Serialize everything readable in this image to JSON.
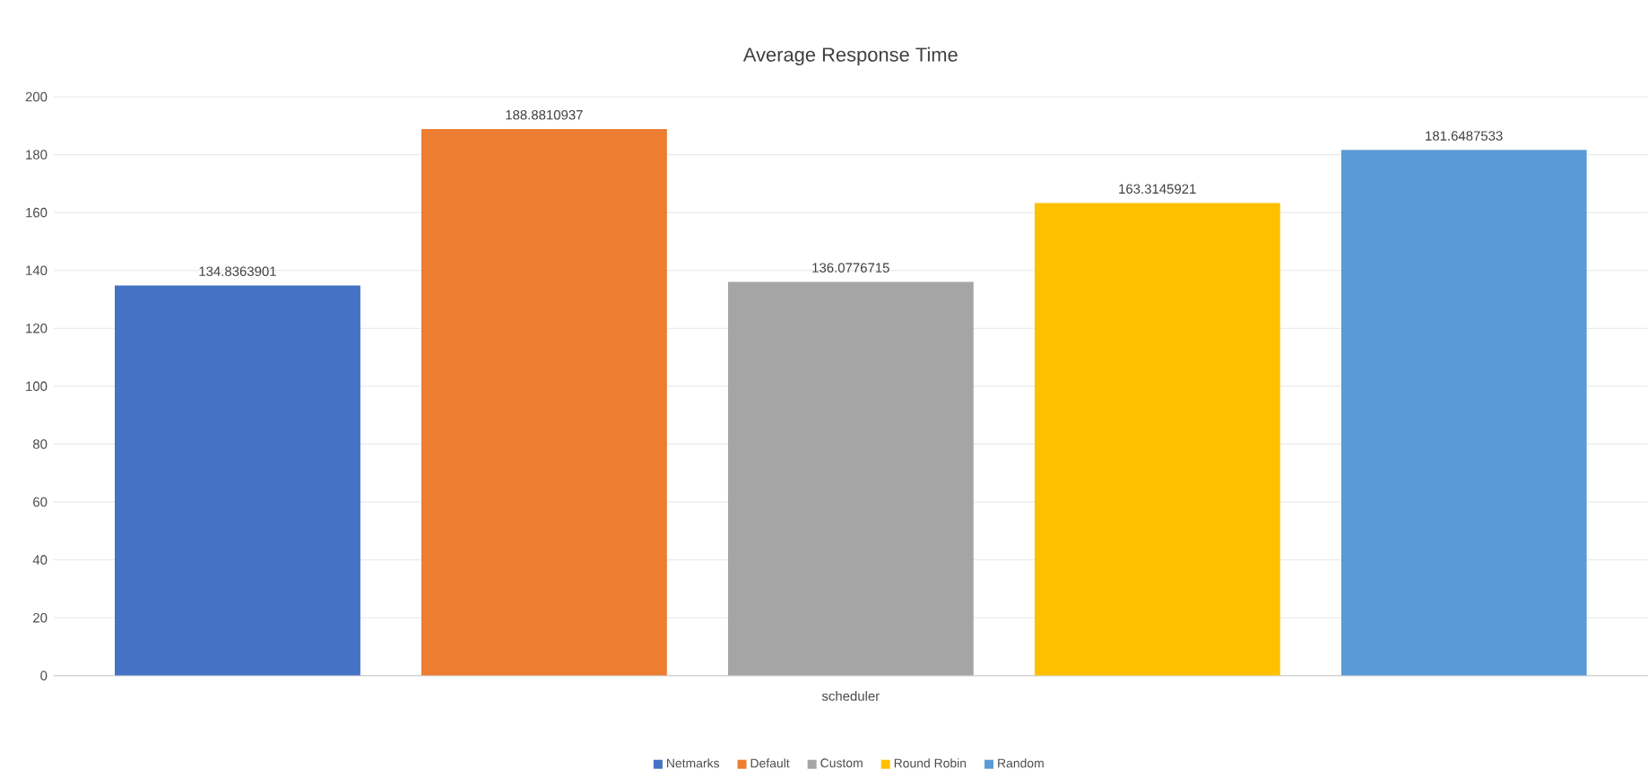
{
  "chart_data": {
    "type": "bar",
    "title": "Average Response Time",
    "categories": [
      "scheduler"
    ],
    "series": [
      {
        "name": "Netmarks",
        "color": "#4472c4",
        "values": [
          134.8363901
        ]
      },
      {
        "name": "Default",
        "color": "#ed7d31",
        "values": [
          188.8810937
        ]
      },
      {
        "name": "Custom",
        "color": "#a5a5a5",
        "values": [
          136.0776715
        ]
      },
      {
        "name": "Round Robin",
        "color": "#ffc000",
        "values": [
          163.3145921
        ]
      },
      {
        "name": "Random",
        "color": "#5b9bd5",
        "values": [
          181.6487533
        ]
      }
    ],
    "ylim": [
      0,
      200
    ],
    "yticks": [
      0,
      20,
      40,
      60,
      80,
      100,
      120,
      140,
      160,
      180,
      200
    ],
    "grid": "y",
    "legend": "bottom",
    "data_labels": true
  }
}
